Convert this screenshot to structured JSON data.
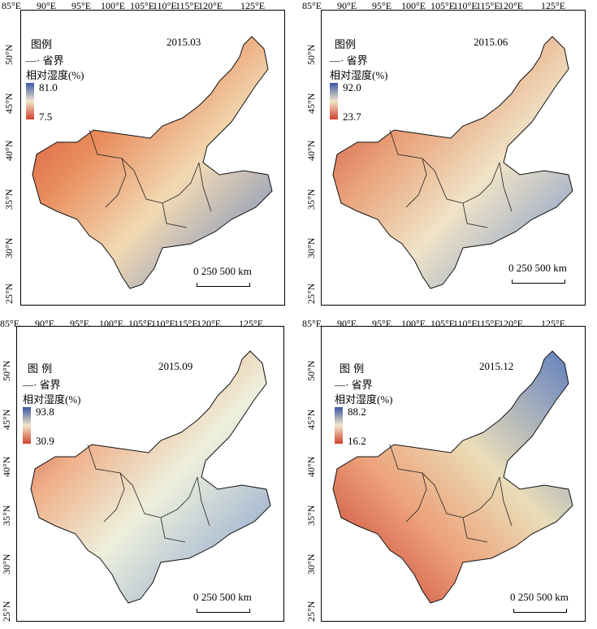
{
  "panels": [
    {
      "date": "2015.03",
      "legend_title": "图例",
      "province_label": "省界",
      "humidity_label": "相对湿度(%)",
      "max": "81.0",
      "min": "7.5",
      "colors": {
        "top": "#3b57a6",
        "mid": "#f3e6c8",
        "bottom": "#d1412f"
      }
    },
    {
      "date": "2015.06",
      "legend_title": "图例",
      "province_label": "省界",
      "humidity_label": "相对湿度(%)",
      "max": "92.0",
      "min": "23.7",
      "colors": {
        "top": "#3b57a6",
        "mid": "#f3e6c8",
        "bottom": "#d1412f"
      }
    },
    {
      "date": "2015.09",
      "legend_title": "图 例",
      "province_label": "省界",
      "humidity_label": "相对湿度(%)",
      "max": "93.8",
      "min": "30.9",
      "colors": {
        "top": "#3b57a6",
        "mid": "#f3e6c8",
        "bottom": "#d1412f"
      }
    },
    {
      "date": "2015.12",
      "legend_title": "图 例",
      "province_label": "省界",
      "humidity_label": "相对湿度(%)",
      "max": "88.2",
      "min": "16.2",
      "colors": {
        "top": "#3b57a6",
        "mid": "#f3e6c8",
        "bottom": "#d1412f"
      }
    }
  ],
  "longitude_labels": [
    "85°E",
    "90°E",
    "95°E",
    "100°E",
    "105°E",
    "110°E",
    "115°E",
    "120°E",
    "125°E"
  ],
  "latitude_labels": [
    "50°N",
    "45°N",
    "40°N",
    "35°N",
    "30°N",
    "25°N"
  ],
  "scale_bar": {
    "labels": [
      "0",
      "250",
      "500 km"
    ]
  }
}
